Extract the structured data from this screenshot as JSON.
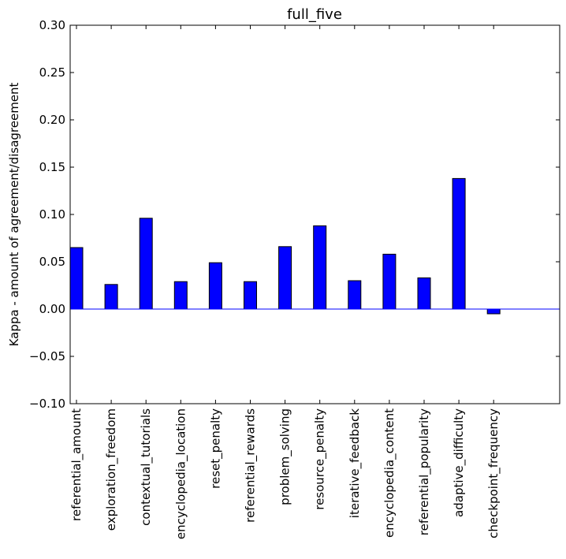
{
  "chart_data": {
    "type": "bar",
    "title": "full_five",
    "xlabel": "",
    "ylabel": "Kappa - amount of agreement/disagreement",
    "ylim": [
      -0.1,
      0.3
    ],
    "yticks": [
      "−0.10",
      "−0.05",
      "0.00",
      "0.05",
      "0.10",
      "0.15",
      "0.20",
      "0.25",
      "0.30"
    ],
    "ytick_values": [
      -0.1,
      -0.05,
      0.0,
      0.05,
      0.1,
      0.15,
      0.2,
      0.25,
      0.3
    ],
    "grid": false,
    "bar_color": "#0000ff",
    "zero_line_color": "#0000ff",
    "categories": [
      "referential_amount",
      "exploration_freedom",
      "contextual_tutorials",
      "encyclopedia_location",
      "reset_penalty",
      "referential_rewards",
      "problem_solving",
      "resource_penalty",
      "iterative_feedback",
      "encyclopedia_content",
      "referential_popularity",
      "adaptive_difficulty",
      "checkpoint_frequency"
    ],
    "values": [
      0.065,
      0.026,
      0.096,
      0.029,
      0.049,
      0.029,
      0.066,
      0.088,
      0.03,
      0.058,
      0.033,
      0.138,
      -0.005
    ]
  }
}
